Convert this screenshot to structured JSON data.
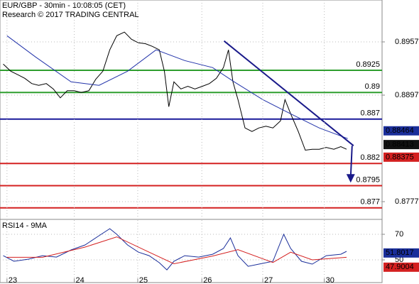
{
  "chart_data": [
    {
      "type": "line",
      "title": "EUR/GBP - 30min - 10:08:05 (CET)",
      "subtitle": "Research © 2017 TRADING CENTRAL",
      "xlim": [
        -0.11,
        5.91
      ],
      "ylim": [
        0.87578,
        0.90042
      ],
      "yticks": [
        0.8777,
        0.8897,
        0.8957
      ],
      "grid": true,
      "series": [
        {
          "name": "EUR/GBP",
          "color": "#000000",
          "x": [
            -0.06,
            0.06,
            0.17,
            0.28,
            0.39,
            0.5,
            0.62,
            0.73,
            0.84,
            0.95,
            1.06,
            1.17,
            1.29,
            1.4,
            1.51,
            1.62,
            1.73,
            1.85,
            1.96,
            2.07,
            2.18,
            2.29,
            2.4,
            2.48,
            2.55,
            2.63,
            2.74,
            2.85,
            2.96,
            3.08,
            3.19,
            3.3,
            3.41,
            3.49,
            3.56,
            3.64,
            3.75,
            3.86,
            3.97,
            4.08,
            4.19,
            4.31,
            4.38,
            4.47,
            4.59,
            4.7,
            4.81,
            4.92,
            5.03,
            5.15,
            5.26,
            5.35
          ],
          "values": [
            0.8932,
            0.8924,
            0.892,
            0.8916,
            0.891,
            0.8908,
            0.891,
            0.8904,
            0.8894,
            0.8902,
            0.8902,
            0.89,
            0.8902,
            0.8915,
            0.8924,
            0.8948,
            0.8964,
            0.8968,
            0.896,
            0.8956,
            0.8955,
            0.8952,
            0.8948,
            0.8924,
            0.8884,
            0.8912,
            0.8904,
            0.8907,
            0.8904,
            0.8907,
            0.891,
            0.8916,
            0.8928,
            0.8948,
            0.8912,
            0.8892,
            0.886,
            0.8856,
            0.886,
            0.8862,
            0.886,
            0.8868,
            0.8892,
            0.8876,
            0.8856,
            0.8835,
            0.8836,
            0.8836,
            0.8838,
            0.8836,
            0.8839,
            0.8836
          ]
        },
        {
          "name": "MA",
          "color": "#2233aa",
          "x": [
            0,
            0.45,
            1.01,
            1.45,
            1.9,
            2.35,
            2.8,
            3.24,
            3.58,
            4.03,
            4.47,
            4.92,
            5.37
          ],
          "values": [
            0.8964,
            0.894,
            0.8912,
            0.8908,
            0.8924,
            0.8948,
            0.8936,
            0.8928,
            0.8912,
            0.8892,
            0.8876,
            0.886,
            0.8848
          ]
        }
      ],
      "levels": [
        {
          "value": 0.8925,
          "color": "#2e9e2e"
        },
        {
          "value": 0.89,
          "color": "#2e9e2e"
        },
        {
          "value": 0.887,
          "color": "#1a1a9a"
        },
        {
          "value": 0.882,
          "color": "#d42020"
        },
        {
          "value": 0.8795,
          "color": "#d42020"
        },
        {
          "value": 0.877,
          "color": "#d42020"
        }
      ],
      "trend_line": {
        "color": "#1a1a8a",
        "x": [
          3.42,
          5.46
        ],
        "values": [
          0.8958,
          0.884
        ]
      },
      "price_tags": [
        {
          "value": 0.88464,
          "color": "#1a2e9a"
        },
        {
          "value": 0.88413,
          "color": "#111111"
        },
        {
          "value": 0.88375,
          "color": "#d42020"
        }
      ]
    },
    {
      "type": "line",
      "title": "RSI14 - 9MA",
      "xlim": [
        -0.11,
        5.91
      ],
      "ylim": [
        35.6,
        81.1
      ],
      "yticks": [
        50,
        70
      ],
      "xticks": [
        {
          "value": 0,
          "label": "23"
        },
        {
          "value": 1.06,
          "label": "24"
        },
        {
          "value": 2.06,
          "label": "25"
        },
        {
          "value": 3.07,
          "label": "26"
        },
        {
          "value": 4.03,
          "label": "27"
        },
        {
          "value": 5.0,
          "label": "30"
        }
      ],
      "grid": true,
      "series": [
        {
          "name": "RSI14",
          "color": "#1a2e9a",
          "x": [
            -0.06,
            0.11,
            0.34,
            0.56,
            0.78,
            1.01,
            1.23,
            1.45,
            1.62,
            1.73,
            1.9,
            2.07,
            2.24,
            2.4,
            2.52,
            2.63,
            2.8,
            3.02,
            3.24,
            3.41,
            3.52,
            3.64,
            3.8,
            3.97,
            4.19,
            4.36,
            4.47,
            4.64,
            4.81,
            5.03,
            5.26,
            5.35
          ],
          "values": [
            53.3,
            48.9,
            50.6,
            53.3,
            52.2,
            57.8,
            61.7,
            68.9,
            74.4,
            70,
            61.7,
            56.1,
            53.3,
            47.8,
            42.2,
            48.9,
            53.3,
            52.2,
            54.4,
            58.9,
            67.2,
            53.3,
            45,
            46.7,
            48.9,
            70,
            58.9,
            48.9,
            46.7,
            53.3,
            54.4,
            56.7
          ]
        },
        {
          "name": "9MA",
          "color": "#d42020",
          "x": [
            0,
            0.56,
            1.23,
            1.73,
            2.24,
            2.63,
            3.24,
            3.64,
            4.19,
            4.47,
            4.81,
            5.35
          ],
          "values": [
            52,
            52,
            60,
            68,
            56,
            47,
            53,
            58,
            48,
            56,
            50,
            52
          ]
        }
      ],
      "price_tags": [
        {
          "value": 51.8017,
          "color": "#1a2e9a"
        },
        {
          "value": 47.9004,
          "color": "#d42020"
        }
      ]
    }
  ]
}
